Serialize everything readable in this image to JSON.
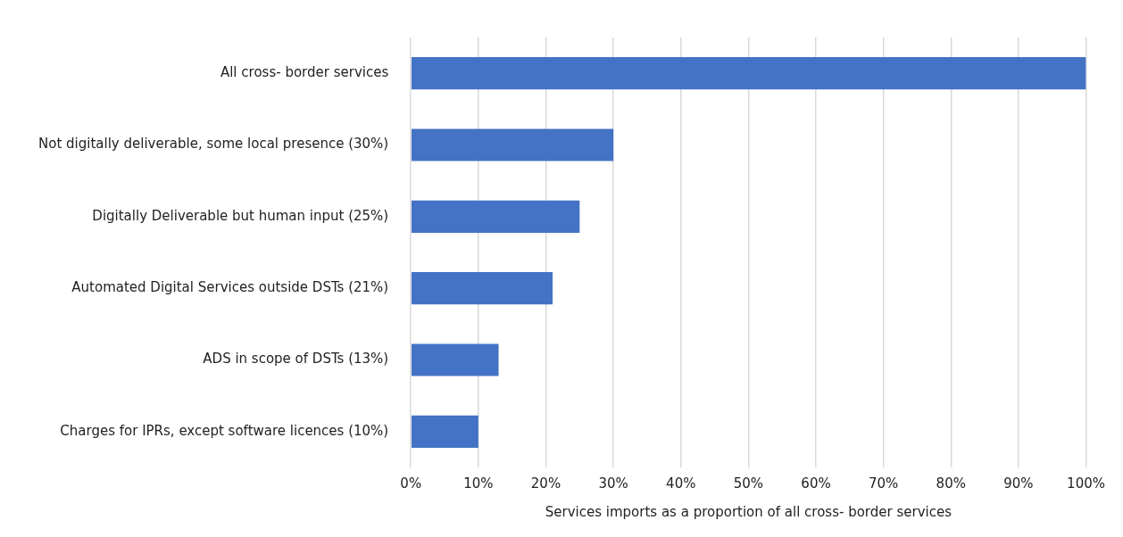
{
  "chart_data": {
    "type": "bar",
    "orientation": "horizontal",
    "xlabel": "Services imports as a proportion of all cross- border services",
    "categories": [
      "All cross- border services",
      "Not digitally deliverable, some local presence (30%)",
      "Digitally Deliverable but human input (25%)",
      "Automated Digital Services outside DSTs (21%)",
      "ADS in scope of DSTs (13%)",
      "Charges for IPRs, except software licences (10%)"
    ],
    "values": [
      100,
      30,
      25,
      21,
      13,
      10
    ],
    "color": "#4472c4",
    "xlim": [
      0,
      100
    ],
    "xticks": [
      {
        "value": 0,
        "label": "0%"
      },
      {
        "value": 10,
        "label": "10%"
      },
      {
        "value": 20,
        "label": "20%"
      },
      {
        "value": 30,
        "label": "30%"
      },
      {
        "value": 40,
        "label": "40%"
      },
      {
        "value": 50,
        "label": "50%"
      },
      {
        "value": 60,
        "label": "60%"
      },
      {
        "value": 70,
        "label": "70%"
      },
      {
        "value": 80,
        "label": "80%"
      },
      {
        "value": 90,
        "label": "90%"
      },
      {
        "value": 100,
        "label": "100%"
      }
    ],
    "grid": "x",
    "legend": false
  }
}
